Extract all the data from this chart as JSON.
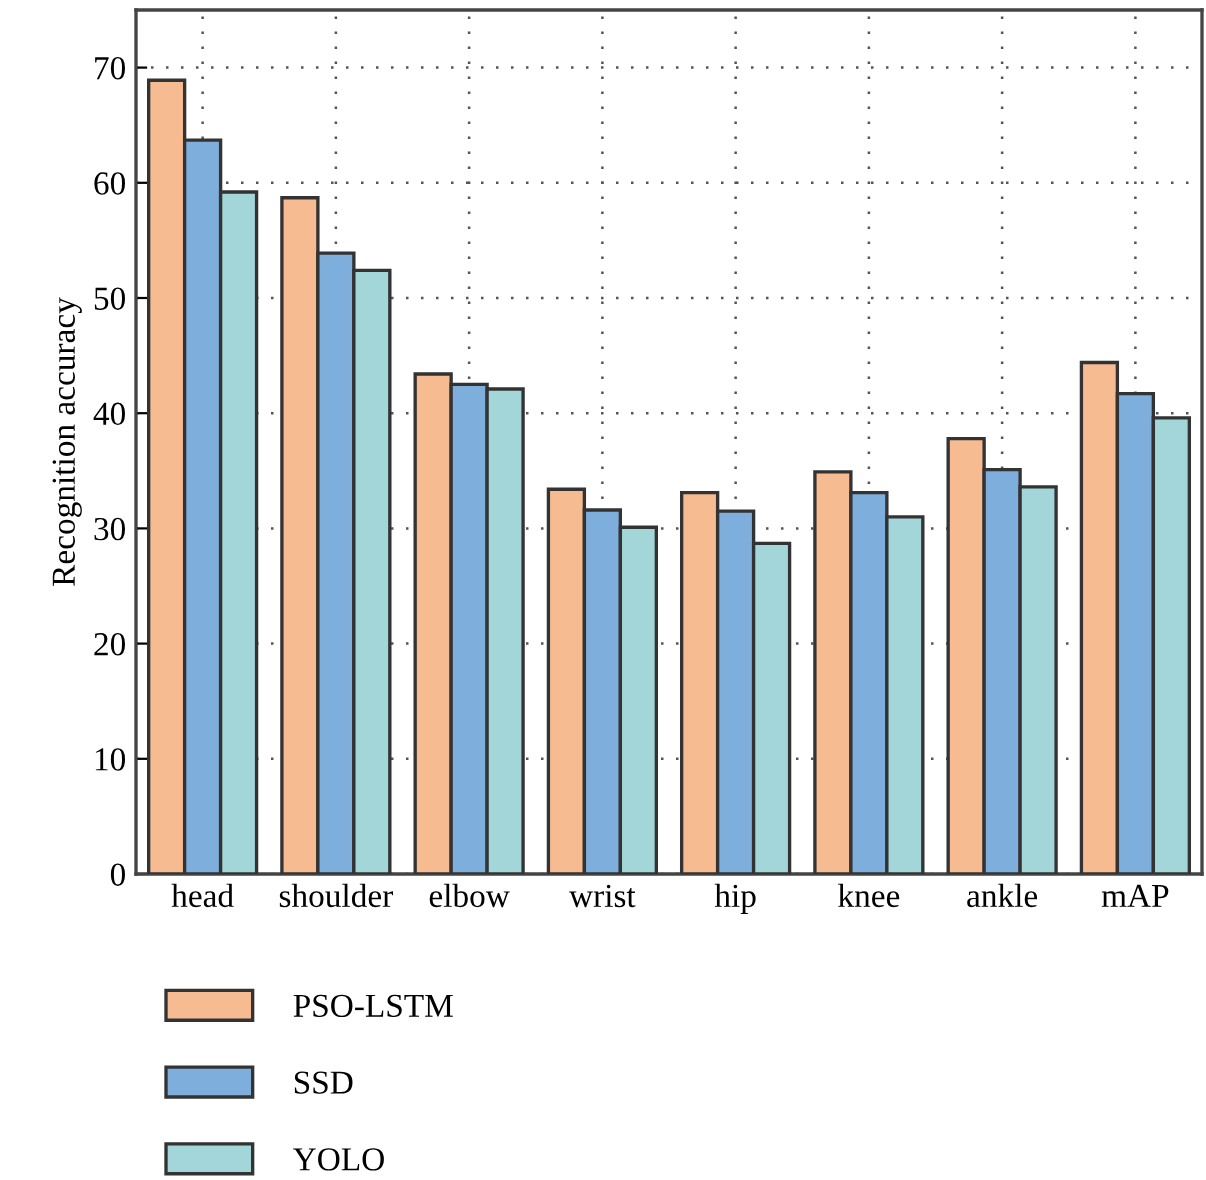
{
  "chart_data": {
    "type": "bar",
    "ylabel": "Recognition accuracy",
    "categories": [
      "head",
      "shoulder",
      "elbow",
      "wrist",
      "hip",
      "knee",
      "ankle",
      "mAP"
    ],
    "series": [
      {
        "name": "PSO-LSTM",
        "color": "#f7bb92",
        "values": [
          68.9,
          58.7,
          43.4,
          33.4,
          33.1,
          34.9,
          37.8,
          44.4
        ]
      },
      {
        "name": "SSD",
        "color": "#7eaedc",
        "values": [
          63.7,
          53.9,
          42.5,
          31.6,
          31.5,
          33.1,
          35.1,
          41.7
        ]
      },
      {
        "name": "YOLO",
        "color": "#a2d6d9",
        "values": [
          59.2,
          52.4,
          42.1,
          30.1,
          28.7,
          31.0,
          33.6,
          39.6
        ]
      }
    ],
    "ylim": [
      0,
      75
    ],
    "yticks": [
      0,
      10,
      20,
      30,
      40,
      50,
      60,
      70
    ],
    "grid": true,
    "legend": "bottom left"
  }
}
